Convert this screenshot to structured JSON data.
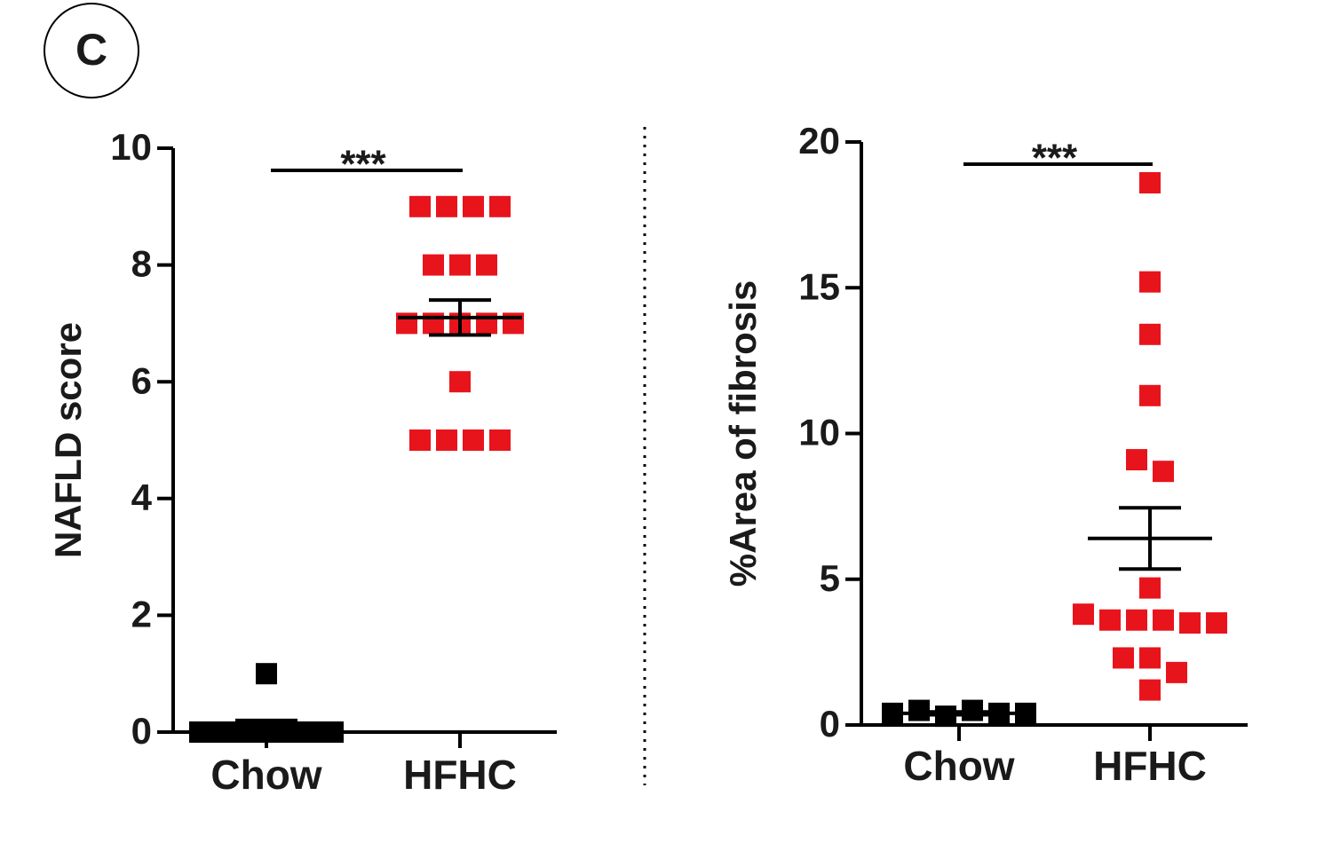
{
  "panel_label": "C",
  "chart_data": [
    {
      "type": "dot",
      "ylabel": "NAFLD score",
      "categories": [
        "Chow",
        "HFHC"
      ],
      "values": [
        [
          1,
          0,
          0,
          0,
          0,
          0,
          0,
          0,
          0,
          0
        ],
        [
          9,
          9,
          9,
          9,
          8,
          8,
          8,
          7,
          7,
          7,
          7,
          7,
          6,
          5,
          5,
          5,
          5
        ]
      ],
      "colors": [
        "#000000",
        "#e8141c"
      ],
      "mean": [
        0.1,
        7.1
      ],
      "sem": [
        0.1,
        0.3
      ],
      "significance": "***",
      "ylim": [
        0,
        10
      ],
      "yticks": [
        0,
        2,
        4,
        6,
        8,
        10
      ]
    },
    {
      "type": "dot",
      "ylabel": "%Area of fibrosis",
      "categories": [
        "Chow",
        "HFHC"
      ],
      "values": [
        [
          0.4,
          0.5,
          0.3,
          0.5,
          0.4,
          0.4
        ],
        [
          18.6,
          15.2,
          13.4,
          11.3,
          9.1,
          8.7,
          4.7,
          3.8,
          3.6,
          3.6,
          3.6,
          3.5,
          3.5,
          2.3,
          2.3,
          1.8,
          1.2
        ]
      ],
      "colors": [
        "#000000",
        "#e8141c"
      ],
      "mean": [
        0.4,
        6.4
      ],
      "sem": [
        0.05,
        1.05
      ],
      "significance": "***",
      "ylim": [
        0,
        20
      ],
      "yticks": [
        0,
        5,
        10,
        15,
        20
      ]
    }
  ]
}
